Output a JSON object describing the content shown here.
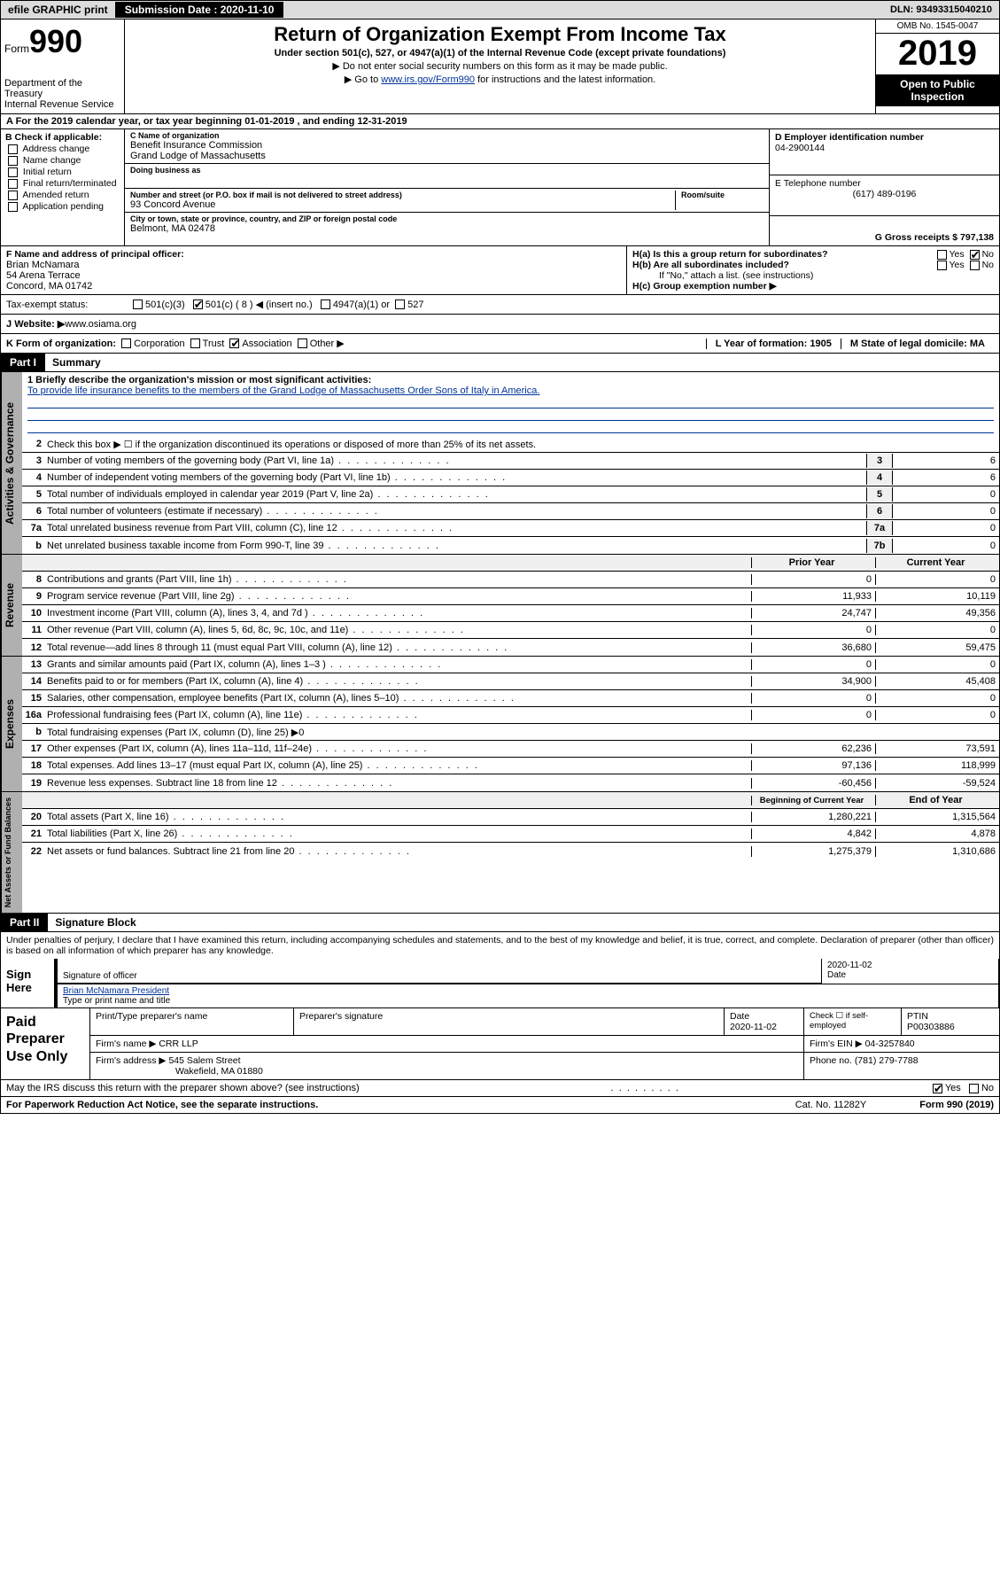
{
  "top": {
    "efile": "efile GRAPHIC print",
    "sub_label": "Submission Date : 2020-11-10",
    "dln": "DLN: 93493315040210"
  },
  "header": {
    "form_label": "Form",
    "form_number": "990",
    "dept": "Department of the Treasury\nInternal Revenue Service",
    "title": "Return of Organization Exempt From Income Tax",
    "subtitle": "Under section 501(c), 527, or 4947(a)(1) of the Internal Revenue Code (except private foundations)",
    "sub2": "▶ Do not enter social security numbers on this form as it may be made public.",
    "sub3_pre": "▶ Go to ",
    "sub3_link": "www.irs.gov/Form990",
    "sub3_post": " for instructions and the latest information.",
    "omb": "OMB No. 1545-0047",
    "year": "2019",
    "open": "Open to Public Inspection"
  },
  "period": "A For the 2019 calendar year, or tax year beginning 01-01-2019   , and ending 12-31-2019",
  "boxB": {
    "title": "B Check if applicable:",
    "items": [
      "Address change",
      "Name change",
      "Initial return",
      "Final return/terminated",
      "Amended return",
      "Application pending"
    ]
  },
  "boxC": {
    "name_label": "C Name of organization",
    "name1": "Benefit Insurance Commission",
    "name2": "Grand Lodge of Massachusetts",
    "dba_label": "Doing business as",
    "addr_label": "Number and street (or P.O. box if mail is not delivered to street address)",
    "addr": "93 Concord Avenue",
    "room_label": "Room/suite",
    "city_label": "City or town, state or province, country, and ZIP or foreign postal code",
    "city": "Belmont, MA  02478"
  },
  "boxD": {
    "label": "D Employer identification number",
    "value": "04-2900144"
  },
  "boxE": {
    "label": "E Telephone number",
    "value": "(617) 489-0196"
  },
  "boxG": {
    "label": "G Gross receipts $ 797,138"
  },
  "boxF": {
    "label": "F  Name and address of principal officer:",
    "name": "Brian McNamara",
    "addr1": "54 Arena Terrace",
    "addr2": "Concord, MA  01742"
  },
  "boxH": {
    "ha": "H(a)  Is this a group return for subordinates?",
    "hb": "H(b)  Are all subordinates included?",
    "hb_note": "If \"No,\" attach a list. (see instructions)",
    "hc": "H(c)  Group exemption number ▶",
    "yes": "Yes",
    "no": "No"
  },
  "boxI": {
    "label": "Tax-exempt status:",
    "c3": "501(c)(3)",
    "c_other": "501(c) ( 8 ) ◀ (insert no.)",
    "a1": "4947(a)(1) or",
    "527": "527"
  },
  "boxJ": {
    "label": "Website: ▶",
    "value": "  www.osiama.org"
  },
  "boxK": {
    "label": "K Form of organization:",
    "corp": "Corporation",
    "trust": "Trust",
    "assoc": "Association",
    "other": "Other ▶"
  },
  "boxL": {
    "label": "L Year of formation: 1905"
  },
  "boxM": {
    "label": "M State of legal domicile: MA"
  },
  "part1": {
    "label": "Part I",
    "title": "Summary",
    "mission_label": "1  Briefly describe the organization's mission or most significant activities:",
    "mission": "To provide life insurance benefits to the members of the Grand Lodge of Massachusetts Order Sons of Italy in America.",
    "line2": "Check this box ▶ ☐  if the organization discontinued its operations or disposed of more than 25% of its net assets.",
    "lines_ag": [
      {
        "n": "3",
        "d": "Number of voting members of the governing body (Part VI, line 1a)",
        "box": "3",
        "v": "6"
      },
      {
        "n": "4",
        "d": "Number of independent voting members of the governing body (Part VI, line 1b)",
        "box": "4",
        "v": "6"
      },
      {
        "n": "5",
        "d": "Total number of individuals employed in calendar year 2019 (Part V, line 2a)",
        "box": "5",
        "v": "0"
      },
      {
        "n": "6",
        "d": "Total number of volunteers (estimate if necessary)",
        "box": "6",
        "v": "0"
      },
      {
        "n": "7a",
        "d": "Total unrelated business revenue from Part VIII, column (C), line 12",
        "box": "7a",
        "v": "0"
      },
      {
        "n": "b",
        "d": "Net unrelated business taxable income from Form 990-T, line 39",
        "box": "7b",
        "v": "0"
      }
    ],
    "col_prior": "Prior Year",
    "col_current": "Current Year",
    "rev": [
      {
        "n": "8",
        "d": "Contributions and grants (Part VIII, line 1h)",
        "p": "0",
        "c": "0"
      },
      {
        "n": "9",
        "d": "Program service revenue (Part VIII, line 2g)",
        "p": "11,933",
        "c": "10,119"
      },
      {
        "n": "10",
        "d": "Investment income (Part VIII, column (A), lines 3, 4, and 7d )",
        "p": "24,747",
        "c": "49,356"
      },
      {
        "n": "11",
        "d": "Other revenue (Part VIII, column (A), lines 5, 6d, 8c, 9c, 10c, and 11e)",
        "p": "0",
        "c": "0"
      },
      {
        "n": "12",
        "d": "Total revenue—add lines 8 through 11 (must equal Part VIII, column (A), line 12)",
        "p": "36,680",
        "c": "59,475"
      }
    ],
    "exp": [
      {
        "n": "13",
        "d": "Grants and similar amounts paid (Part IX, column (A), lines 1–3 )",
        "p": "0",
        "c": "0"
      },
      {
        "n": "14",
        "d": "Benefits paid to or for members (Part IX, column (A), line 4)",
        "p": "34,900",
        "c": "45,408"
      },
      {
        "n": "15",
        "d": "Salaries, other compensation, employee benefits (Part IX, column (A), lines 5–10)",
        "p": "0",
        "c": "0"
      },
      {
        "n": "16a",
        "d": "Professional fundraising fees (Part IX, column (A), line 11e)",
        "p": "0",
        "c": "0"
      },
      {
        "n": "b",
        "d": "Total fundraising expenses (Part IX, column (D), line 25) ▶0",
        "p": "",
        "c": "",
        "shade": true
      },
      {
        "n": "17",
        "d": "Other expenses (Part IX, column (A), lines 11a–11d, 11f–24e)",
        "p": "62,236",
        "c": "73,591"
      },
      {
        "n": "18",
        "d": "Total expenses. Add lines 13–17 (must equal Part IX, column (A), line 25)",
        "p": "97,136",
        "c": "118,999"
      },
      {
        "n": "19",
        "d": "Revenue less expenses. Subtract line 18 from line 12",
        "p": "-60,456",
        "c": "-59,524"
      }
    ],
    "col_begin": "Beginning of Current Year",
    "col_end": "End of Year",
    "net": [
      {
        "n": "20",
        "d": "Total assets (Part X, line 16)",
        "p": "1,280,221",
        "c": "1,315,564"
      },
      {
        "n": "21",
        "d": "Total liabilities (Part X, line 26)",
        "p": "4,842",
        "c": "4,878"
      },
      {
        "n": "22",
        "d": "Net assets or fund balances. Subtract line 21 from line 20",
        "p": "1,275,379",
        "c": "1,310,686"
      }
    ],
    "vtab_ag": "Activities & Governance",
    "vtab_rev": "Revenue",
    "vtab_exp": "Expenses",
    "vtab_net": "Net Assets or Fund Balances"
  },
  "part2": {
    "label": "Part II",
    "title": "Signature Block",
    "perjury": "Under penalties of perjury, I declare that I have examined this return, including accompanying schedules and statements, and to the best of my knowledge and belief, it is true, correct, and complete. Declaration of preparer (other than officer) is based on all information of which preparer has any knowledge.",
    "sign_here": "Sign Here",
    "sig_officer": "Signature of officer",
    "sig_date": "2020-11-02",
    "date_label": "Date",
    "officer_name": "Brian McNamara  President",
    "type_name": "Type or print name and title"
  },
  "paid": {
    "label": "Paid Preparer Use Only",
    "h_name": "Print/Type preparer's name",
    "h_sig": "Preparer's signature",
    "h_date": "Date",
    "date_val": "2020-11-02",
    "h_check": "Check ☐ if self-employed",
    "h_ptin": "PTIN",
    "ptin": "P00303886",
    "firm_name_lbl": "Firm's name    ▶",
    "firm_name": "CRR LLP",
    "firm_ein_lbl": "Firm's EIN ▶",
    "firm_ein": "04-3257840",
    "firm_addr_lbl": "Firm's address ▶",
    "firm_addr": "545 Salem Street",
    "firm_city": "Wakefield, MA  01880",
    "phone_lbl": "Phone no.",
    "phone": "(781) 279-7788"
  },
  "footer": {
    "discuss": "May the IRS discuss this return with the preparer shown above? (see instructions)",
    "yes": "Yes",
    "no": "No",
    "paperwork": "For Paperwork Reduction Act Notice, see the separate instructions.",
    "cat": "Cat. No. 11282Y",
    "form": "Form 990 (2019)"
  },
  "colors": {
    "link": "#003399",
    "header_bg": "#000000",
    "shade": "#c0c0c0"
  }
}
